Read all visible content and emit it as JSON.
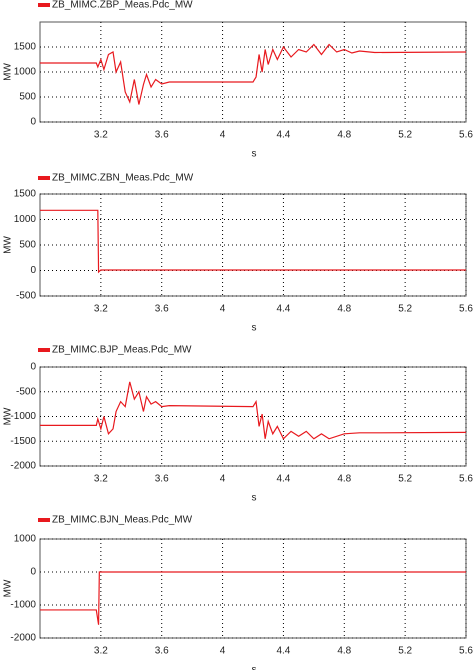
{
  "chart_data": [
    {
      "type": "line",
      "x_label": "s",
      "y_label": "MW",
      "xlim": [
        2.8,
        5.6
      ],
      "xticks": [
        3.2,
        3.6,
        4,
        4.4,
        4.8,
        5.2,
        5.6
      ],
      "ylim": [
        0,
        2000
      ],
      "yticks": [
        0,
        500,
        1000,
        1500
      ],
      "grid": true,
      "series": [
        {
          "name": "ZB_MIMC.ZBP_Meas.Pdc_MW",
          "color": "#e8191e",
          "x": [
            2.8,
            3.17,
            3.18,
            3.2,
            3.22,
            3.25,
            3.28,
            3.3,
            3.33,
            3.36,
            3.39,
            3.42,
            3.45,
            3.48,
            3.5,
            3.53,
            3.56,
            3.6,
            3.65,
            4.2,
            4.22,
            4.24,
            4.26,
            4.28,
            4.3,
            4.33,
            4.36,
            4.4,
            4.45,
            4.5,
            4.55,
            4.6,
            4.65,
            4.7,
            4.75,
            4.8,
            4.85,
            4.9,
            5.0,
            5.6
          ],
          "values": [
            1180,
            1180,
            1100,
            1250,
            1050,
            1350,
            1400,
            1000,
            1200,
            600,
            400,
            850,
            350,
            750,
            950,
            700,
            850,
            760,
            800,
            800,
            900,
            1350,
            1000,
            1450,
            1150,
            1450,
            1250,
            1500,
            1300,
            1450,
            1400,
            1550,
            1350,
            1550,
            1400,
            1450,
            1380,
            1420,
            1390,
            1400
          ]
        }
      ]
    },
    {
      "type": "line",
      "x_label": "s",
      "y_label": "MW",
      "xlim": [
        2.8,
        5.6
      ],
      "xticks": [
        3.2,
        3.6,
        4,
        4.4,
        4.8,
        5.2,
        5.6
      ],
      "ylim": [
        -500,
        1500
      ],
      "yticks": [
        -500,
        0,
        500,
        1000,
        1500
      ],
      "grid": true,
      "series": [
        {
          "name": "ZB_MIMC.ZBN_Meas.Pdc_MW",
          "color": "#e8191e",
          "x": [
            2.8,
            3.18,
            3.185,
            3.2,
            5.6
          ],
          "values": [
            1180,
            1180,
            -30,
            10,
            10
          ]
        }
      ]
    },
    {
      "type": "line",
      "x_label": "s",
      "y_label": "MW",
      "xlim": [
        2.8,
        5.6
      ],
      "xticks": [
        3.2,
        3.6,
        4,
        4.4,
        4.8,
        5.2,
        5.6
      ],
      "ylim": [
        -2000,
        0
      ],
      "yticks": [
        -2000,
        -1500,
        -1000,
        -500,
        0
      ],
      "grid": true,
      "series": [
        {
          "name": "ZB_MIMC.BJP_Meas.Pdc_MW",
          "color": "#e8191e",
          "x": [
            2.8,
            3.17,
            3.18,
            3.2,
            3.22,
            3.25,
            3.28,
            3.3,
            3.33,
            3.36,
            3.39,
            3.42,
            3.45,
            3.48,
            3.5,
            3.53,
            3.56,
            3.6,
            3.65,
            4.2,
            4.22,
            4.24,
            4.26,
            4.28,
            4.3,
            4.33,
            4.36,
            4.4,
            4.45,
            4.5,
            4.55,
            4.6,
            4.65,
            4.7,
            4.8,
            4.9,
            5.0,
            5.6
          ],
          "values": [
            -1180,
            -1180,
            -1050,
            -1250,
            -1000,
            -1350,
            -1250,
            -900,
            -700,
            -800,
            -300,
            -650,
            -500,
            -900,
            -600,
            -750,
            -700,
            -800,
            -780,
            -800,
            -700,
            -1200,
            -950,
            -1450,
            -1100,
            -1350,
            -1200,
            -1450,
            -1300,
            -1400,
            -1300,
            -1450,
            -1350,
            -1450,
            -1350,
            -1330,
            -1330,
            -1320
          ]
        }
      ]
    },
    {
      "type": "line",
      "x_label": "s",
      "y_label": "MW",
      "xlim": [
        2.8,
        5.6
      ],
      "xticks": [
        3.2,
        3.6,
        4,
        4.4,
        4.8,
        5.2,
        5.6
      ],
      "ylim": [
        -2000,
        1000
      ],
      "yticks": [
        -2000,
        -1000,
        0,
        1000
      ],
      "grid": true,
      "series": [
        {
          "name": "ZB_MIMC.BJN_Meas.Pdc_MW",
          "color": "#e8191e",
          "x": [
            2.8,
            3.17,
            3.185,
            3.19,
            5.6
          ],
          "values": [
            -1150,
            -1150,
            -1600,
            0,
            0
          ]
        }
      ]
    }
  ]
}
